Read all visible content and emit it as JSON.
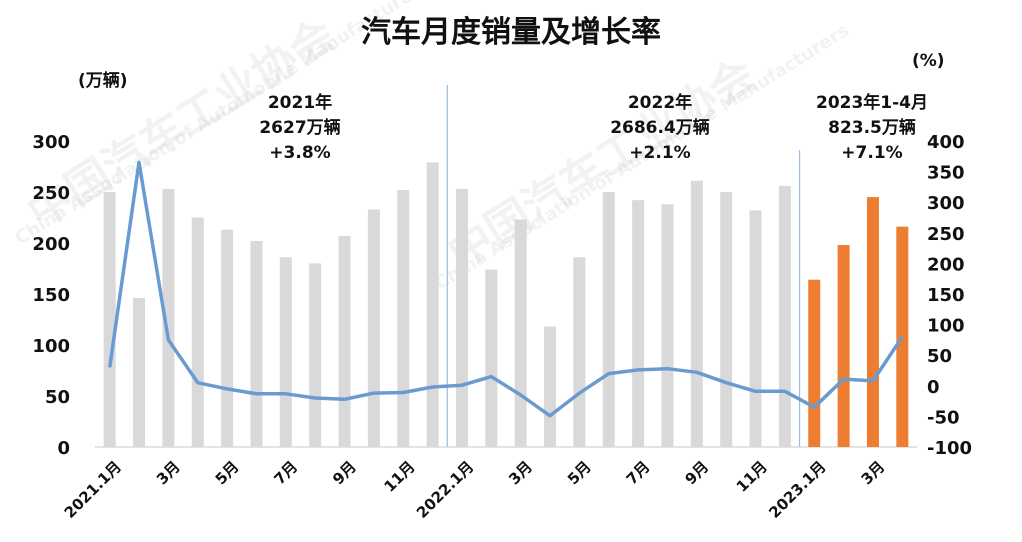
{
  "chart_data": {
    "type": "bar",
    "title": "汽车月度销量及增长率",
    "left_axis_unit": "(万辆)",
    "right_axis_unit": "(%)",
    "yleft_ticks": [
      "300",
      "250",
      "200",
      "150",
      "100",
      "50",
      "0"
    ],
    "yright_ticks": [
      "400",
      "350",
      "300",
      "250",
      "200",
      "150",
      "100",
      "50",
      "0",
      "-50",
      "-100"
    ],
    "ylim_left": [
      0,
      300
    ],
    "ylim_right": [
      -100,
      400
    ],
    "months": [
      "2021.1",
      "2021.2",
      "2021.3",
      "2021.4",
      "2021.5",
      "2021.6",
      "2021.7",
      "2021.8",
      "2021.9",
      "2021.10",
      "2021.11",
      "2021.12",
      "2022.1",
      "2022.2",
      "2022.3",
      "2022.4",
      "2022.5",
      "2022.6",
      "2022.7",
      "2022.8",
      "2022.9",
      "2022.10",
      "2022.11",
      "2022.12",
      "2023.1",
      "2023.2",
      "2023.3",
      "2023.4"
    ],
    "x_tick_labels": [
      "2021.1月",
      "",
      "3月",
      "",
      "5月",
      "",
      "7月",
      "",
      "9月",
      "",
      "11月",
      "",
      "2022.1月",
      "",
      "3月",
      "",
      "5月",
      "",
      "7月",
      "",
      "9月",
      "",
      "11月",
      "",
      "2023.1月",
      "",
      "3月",
      ""
    ],
    "series": [
      {
        "type": "bar",
        "axis": "left",
        "values": [
          250,
          146,
          253,
          225,
          213,
          202,
          186,
          180,
          207,
          233,
          252,
          279,
          253,
          174,
          223,
          118,
          186,
          250,
          242,
          238,
          261,
          250,
          232,
          256,
          164,
          198,
          245,
          216
        ],
        "colors": [
          "#d9d9d9",
          "#d9d9d9",
          "#d9d9d9",
          "#d9d9d9",
          "#d9d9d9",
          "#d9d9d9",
          "#d9d9d9",
          "#d9d9d9",
          "#d9d9d9",
          "#d9d9d9",
          "#d9d9d9",
          "#d9d9d9",
          "#d9d9d9",
          "#d9d9d9",
          "#d9d9d9",
          "#d9d9d9",
          "#d9d9d9",
          "#d9d9d9",
          "#d9d9d9",
          "#d9d9d9",
          "#d9d9d9",
          "#d9d9d9",
          "#d9d9d9",
          "#d9d9d9",
          "#ed7d31",
          "#ed7d31",
          "#ed7d31",
          "#ed7d31"
        ]
      },
      {
        "type": "line",
        "axis": "right",
        "color": "#6a9bd0",
        "values": [
          30,
          365,
          75,
          5,
          -5,
          -13,
          -13,
          -20,
          -22,
          -12,
          -11,
          -2,
          1,
          15,
          -15,
          -49,
          -12,
          20,
          26,
          28,
          22,
          5,
          -9,
          -9,
          -35,
          11,
          8,
          80
        ]
      }
    ],
    "annotations": [
      {
        "lines": [
          "2021年",
          "2627万辆",
          "+3.8%"
        ]
      },
      {
        "lines": [
          "2022年",
          "2686.4万辆",
          "+2.1%"
        ]
      },
      {
        "lines": [
          "2023年1-4月",
          "823.5万辆",
          "+7.1%"
        ]
      }
    ],
    "colors": {
      "bar_gray": "#d9d9d9",
      "bar_orange": "#ed7d31",
      "line": "#6a9bd0",
      "divider": "#9fbbdc"
    }
  },
  "watermark": {
    "text_cn": "中国汽车工业协会",
    "text_en": "China Association of Automobile Manufacturers"
  }
}
